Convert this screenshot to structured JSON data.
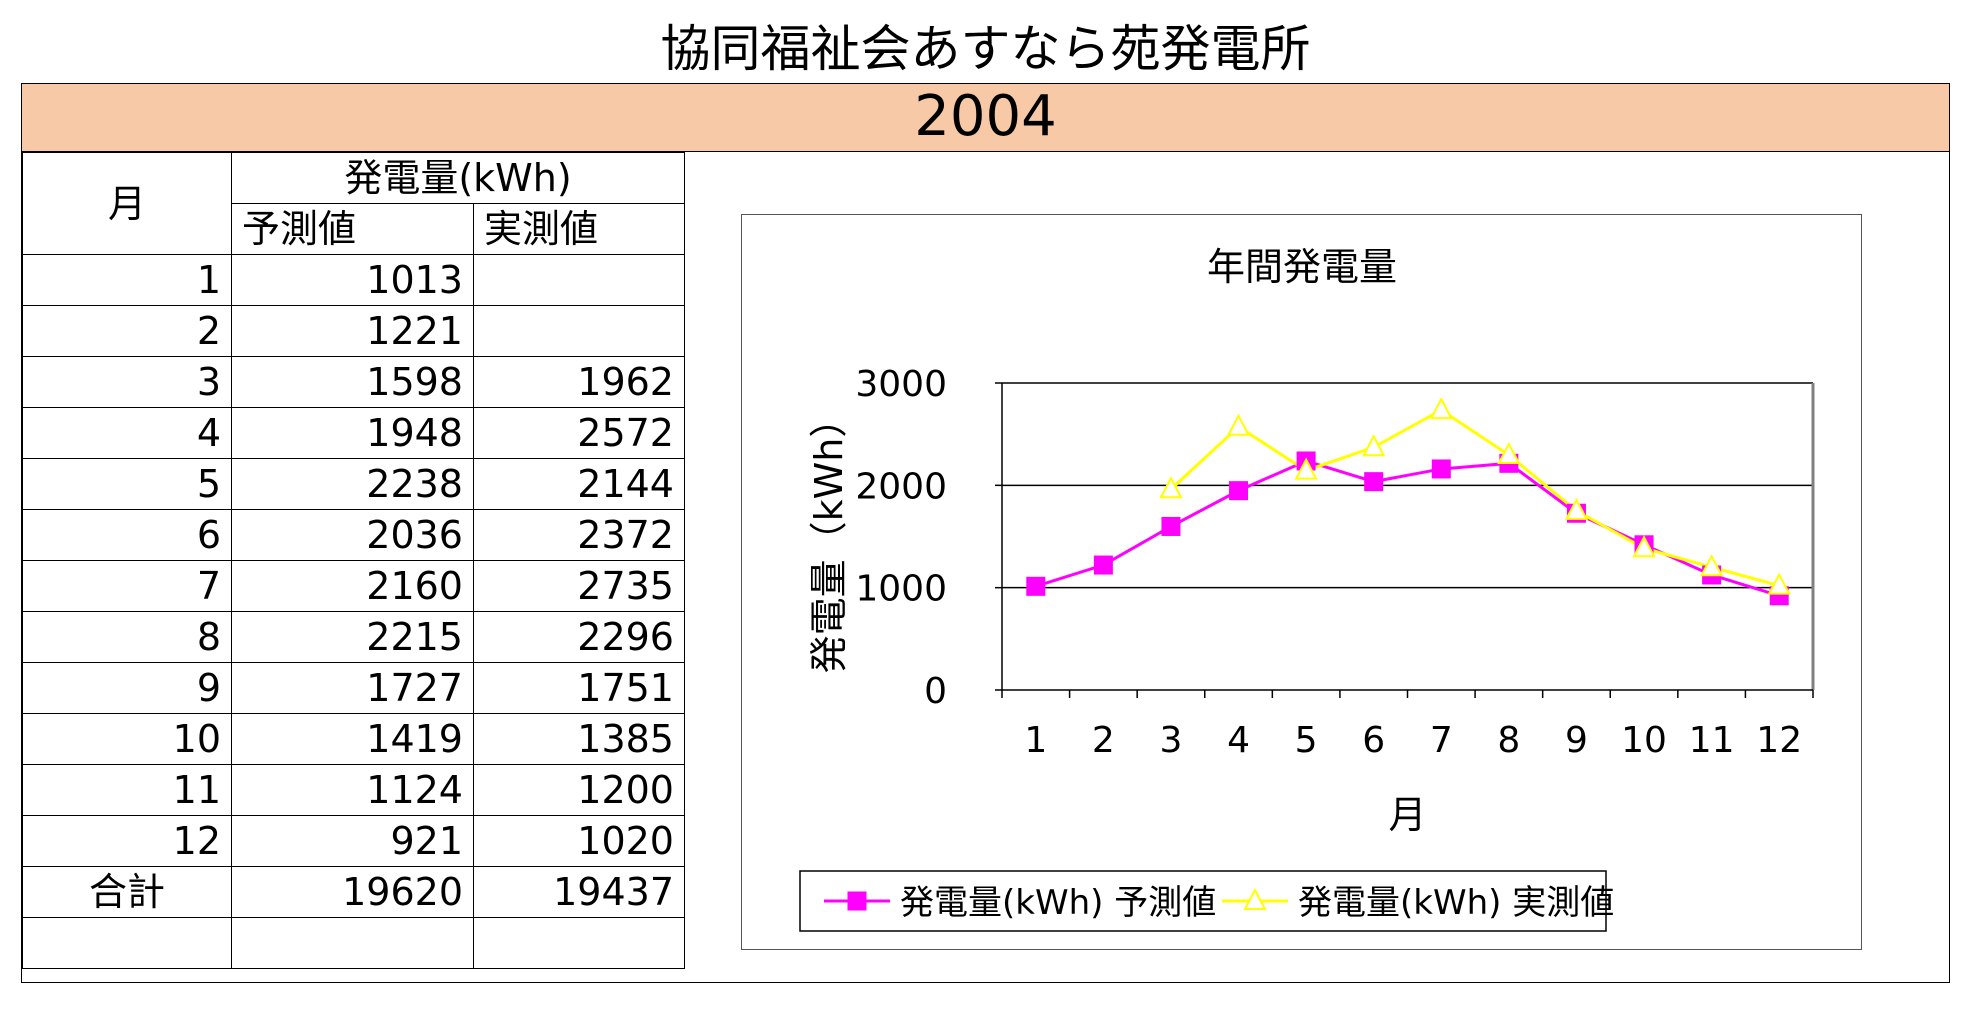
{
  "page_title": "協同福祉会あすなら苑発電所",
  "year": "2004",
  "table": {
    "header_month": "月",
    "header_group": "発電量(kWh)",
    "header_pred": "予測値",
    "header_actual": "実測値",
    "rows": [
      {
        "month": "1",
        "pred": "1013",
        "actual": ""
      },
      {
        "month": "2",
        "pred": "1221",
        "actual": ""
      },
      {
        "month": "3",
        "pred": "1598",
        "actual": "1962"
      },
      {
        "month": "4",
        "pred": "1948",
        "actual": "2572"
      },
      {
        "month": "5",
        "pred": "2238",
        "actual": "2144"
      },
      {
        "month": "6",
        "pred": "2036",
        "actual": "2372"
      },
      {
        "month": "7",
        "pred": "2160",
        "actual": "2735"
      },
      {
        "month": "8",
        "pred": "2215",
        "actual": "2296"
      },
      {
        "month": "9",
        "pred": "1727",
        "actual": "1751"
      },
      {
        "month": "10",
        "pred": "1419",
        "actual": "1385"
      },
      {
        "month": "11",
        "pred": "1124",
        "actual": "1200"
      },
      {
        "month": "12",
        "pred": "921",
        "actual": "1020"
      }
    ],
    "total_label": "合計",
    "total_pred": "19620",
    "total_actual": "19437"
  },
  "chart_data": {
    "type": "line",
    "title": "年間発電量",
    "xlabel": "月",
    "ylabel": "発電量（kWh）",
    "categories": [
      "1",
      "2",
      "3",
      "4",
      "5",
      "6",
      "7",
      "8",
      "9",
      "10",
      "11",
      "12"
    ],
    "ylim": [
      0,
      3000
    ],
    "yticks": [
      0,
      1000,
      2000,
      3000
    ],
    "grid": true,
    "legend_position": "bottom",
    "series": [
      {
        "name": "発電量(kWh) 予測値",
        "color": "#ff00ff",
        "marker": "square",
        "values": [
          1013,
          1221,
          1598,
          1948,
          2238,
          2036,
          2160,
          2215,
          1727,
          1419,
          1124,
          921
        ]
      },
      {
        "name": "発電量(kWh) 実測値",
        "color": "#ffff00",
        "marker": "triangle",
        "values": [
          null,
          null,
          1962,
          2572,
          2144,
          2372,
          2735,
          2296,
          1751,
          1385,
          1200,
          1020
        ]
      }
    ]
  }
}
